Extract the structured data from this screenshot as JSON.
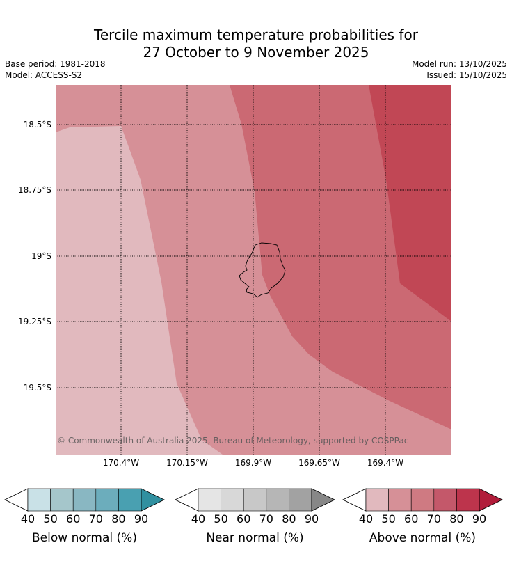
{
  "title_line1": "Tercile maximum temperature probabilities for",
  "title_line2": "27 October to 9 November 2025",
  "base_period": "Base period: 1981-2018",
  "model": "Model: ACCESS-S2",
  "model_run": "Model run: 13/10/2025",
  "issued": "Issued: 15/10/2025",
  "copyright": "© Commonwealth of Australia 2025, Bureau of Meteorology, supported by COSPPac",
  "lat_labels": [
    "18.5°S",
    "18.75°S",
    "19°S",
    "19.25°S",
    "19.5°S"
  ],
  "lon_labels": [
    "170.4°W",
    "170.15°W",
    "169.9°W",
    "169.65°W",
    "169.4°W"
  ],
  "colors": {
    "above_40": "#e1b9be",
    "above_50": "#d69097",
    "above_60": "#cb6973",
    "above_70": "#c14755",
    "island_outline": "#000000"
  },
  "legends": [
    {
      "name": "below",
      "title": "Below normal (%)",
      "ticks": [
        "40",
        "50",
        "60",
        "70",
        "80",
        "90"
      ],
      "colors": [
        "#c9e1e7",
        "#a5c6cb",
        "#89b7c2",
        "#6cadbc",
        "#49a0b1",
        "#3090a0"
      ]
    },
    {
      "name": "near",
      "title": "Near normal (%)",
      "ticks": [
        "40",
        "50",
        "60",
        "70",
        "80",
        "90"
      ],
      "colors": [
        "#e5e5e5",
        "#d8d8d8",
        "#c8c8c8",
        "#b6b6b6",
        "#a2a2a2",
        "#878787"
      ]
    },
    {
      "name": "above",
      "title": "Above normal (%)",
      "ticks": [
        "40",
        "50",
        "60",
        "70",
        "80",
        "90"
      ],
      "colors": [
        "#e1b9be",
        "#d69097",
        "#cf7a82",
        "#c4586a",
        "#bd344c",
        "#b11c3a"
      ]
    }
  ]
}
